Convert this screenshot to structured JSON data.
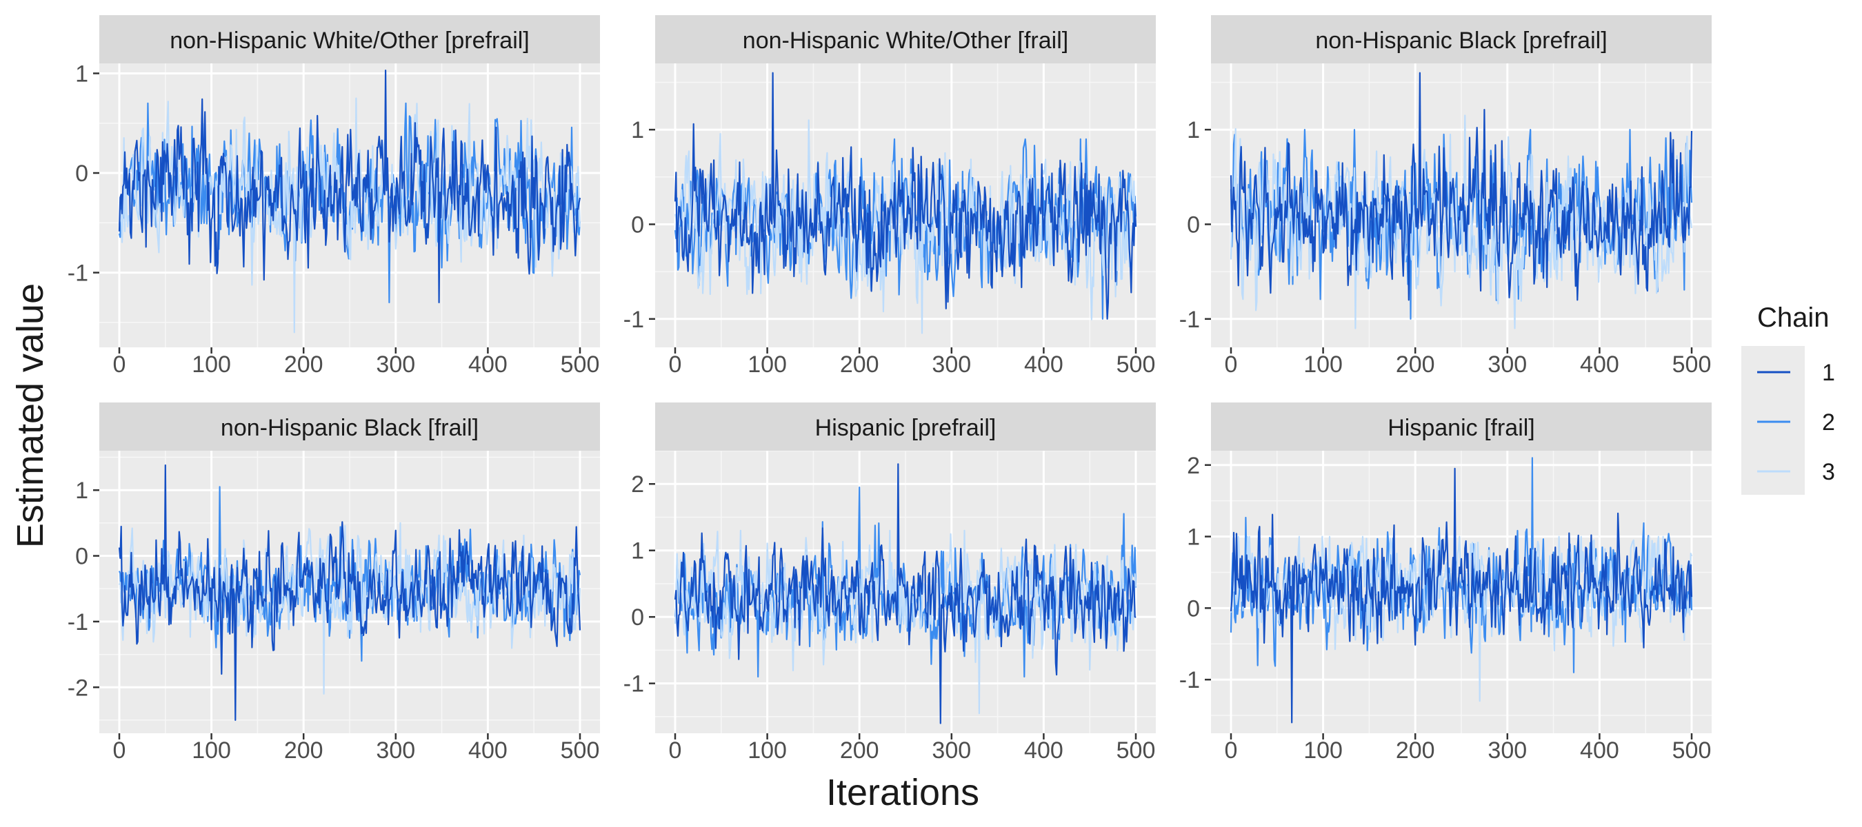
{
  "axes": {
    "xlabel": "Iterations",
    "ylabel": "Estimated value"
  },
  "legend": {
    "title": "Chain",
    "placement": "right",
    "entries": [
      {
        "label": "1",
        "color": "#1550c4"
      },
      {
        "label": "2",
        "color": "#3b8cf0"
      },
      {
        "label": "3",
        "color": "#bddcfb"
      }
    ]
  },
  "colors": {
    "panel_bg": "#ebebeb",
    "strip_bg": "#d9d9d9",
    "grid_major": "#ffffff",
    "text": "#4d4d4d",
    "title_text": "#1a1a1a"
  },
  "chart_data": {
    "type": "line",
    "grid": true,
    "x_range": [
      0,
      500
    ],
    "x_ticks": [
      0,
      100,
      200,
      300,
      400,
      500
    ],
    "iterations": 500,
    "chains": [
      "1",
      "2",
      "3"
    ],
    "panels": [
      {
        "strip": "non-Hispanic White/Other [prefrail]",
        "ylim": [
          -1.75,
          1.1
        ],
        "y_ticks": [
          -1,
          0,
          1
        ],
        "y_tick_labels": [
          "-1",
          "0",
          "1"
        ],
        "chain_summary": [
          {
            "chain": "1",
            "mean": -0.2,
            "sd": 0.32,
            "min": -1.3,
            "max": 1.03
          },
          {
            "chain": "2",
            "mean": -0.2,
            "sd": 0.32,
            "min": -1.3,
            "max": 0.7
          },
          {
            "chain": "3",
            "mean": -0.2,
            "sd": 0.32,
            "min": -1.6,
            "max": 0.75
          }
        ]
      },
      {
        "strip": "non-Hispanic White/Other [frail]",
        "ylim": [
          -1.3,
          1.7
        ],
        "y_ticks": [
          -1,
          0,
          1
        ],
        "y_tick_labels": [
          "-1",
          "0",
          "1"
        ],
        "chain_summary": [
          {
            "chain": "1",
            "mean": 0.05,
            "sd": 0.34,
            "min": -1.0,
            "max": 1.6
          },
          {
            "chain": "2",
            "mean": 0.05,
            "sd": 0.34,
            "min": -1.0,
            "max": 0.9
          },
          {
            "chain": "3",
            "mean": 0.05,
            "sd": 0.34,
            "min": -1.15,
            "max": 1.1
          }
        ]
      },
      {
        "strip": "non-Hispanic Black [prefrail]",
        "ylim": [
          -1.3,
          1.7
        ],
        "y_ticks": [
          -1,
          0,
          1
        ],
        "y_tick_labels": [
          "-1",
          "0",
          "1"
        ],
        "chain_summary": [
          {
            "chain": "1",
            "mean": 0.05,
            "sd": 0.34,
            "min": -0.8,
            "max": 1.6
          },
          {
            "chain": "2",
            "mean": 0.05,
            "sd": 0.34,
            "min": -1.0,
            "max": 1.0
          },
          {
            "chain": "3",
            "mean": 0.05,
            "sd": 0.34,
            "min": -1.1,
            "max": 1.15
          }
        ]
      },
      {
        "strip": "non-Hispanic Black [frail]",
        "ylim": [
          -2.7,
          1.6
        ],
        "y_ticks": [
          -2,
          -1,
          0,
          1
        ],
        "y_tick_labels": [
          "-2",
          "-1",
          "0",
          "1"
        ],
        "chain_summary": [
          {
            "chain": "1",
            "mean": -0.5,
            "sd": 0.36,
            "min": -2.5,
            "max": 1.38
          },
          {
            "chain": "2",
            "mean": -0.5,
            "sd": 0.36,
            "min": -1.6,
            "max": 1.05
          },
          {
            "chain": "3",
            "mean": -0.5,
            "sd": 0.36,
            "min": -2.1,
            "max": 0.5
          }
        ]
      },
      {
        "strip": "Hispanic [prefrail]",
        "ylim": [
          -1.75,
          2.5
        ],
        "y_ticks": [
          -1,
          0,
          1,
          2
        ],
        "y_tick_labels": [
          "-1",
          "0",
          "1",
          "2"
        ],
        "chain_summary": [
          {
            "chain": "1",
            "mean": 0.3,
            "sd": 0.36,
            "min": -1.6,
            "max": 2.3
          },
          {
            "chain": "2",
            "mean": 0.3,
            "sd": 0.36,
            "min": -0.9,
            "max": 1.95
          },
          {
            "chain": "3",
            "mean": 0.3,
            "sd": 0.36,
            "min": -1.45,
            "max": 1.3
          }
        ]
      },
      {
        "strip": "Hispanic [frail]",
        "ylim": [
          -1.75,
          2.2
        ],
        "y_ticks": [
          -1,
          0,
          1,
          2
        ],
        "y_tick_labels": [
          "-1",
          "0",
          "1",
          "2"
        ],
        "chain_summary": [
          {
            "chain": "1",
            "mean": 0.3,
            "sd": 0.36,
            "min": -1.6,
            "max": 1.95
          },
          {
            "chain": "2",
            "mean": 0.3,
            "sd": 0.36,
            "min": -0.9,
            "max": 2.1
          },
          {
            "chain": "3",
            "mean": 0.3,
            "sd": 0.36,
            "min": -1.3,
            "max": 1.0
          }
        ]
      }
    ]
  }
}
